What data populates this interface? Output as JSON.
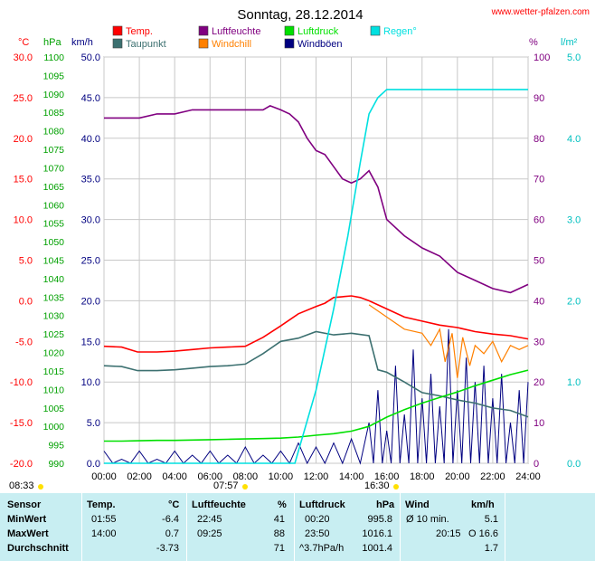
{
  "title": "Sonntag, 28.12.2014",
  "website": "www.wetter-pfalzen.com",
  "colors": {
    "temp": "#ff0000",
    "taupunkt": "#3c7070",
    "luftfeuchte": "#800080",
    "windchill": "#ff8000",
    "luftdruck": "#00e000",
    "windboeen": "#000080",
    "regen": "#00e0e0",
    "axis_temp": "#ff0000",
    "axis_hpa": "#00a000",
    "axis_kmh": "#000080",
    "axis_pct": "#800080",
    "axis_rain": "#00c0c0"
  },
  "legend": [
    {
      "label": "Temp.",
      "color": "#ff0000"
    },
    {
      "label": "Taupunkt",
      "color": "#3c7070"
    },
    {
      "label": "Luftfeuchte",
      "color": "#800080"
    },
    {
      "label": "Windchill",
      "color": "#ff8000"
    },
    {
      "label": "Luftdruck",
      "color": "#00e000"
    },
    {
      "label": "Windböen",
      "color": "#000080"
    },
    {
      "label": "Regen°",
      "color": "#00e0e0"
    }
  ],
  "axis_units": {
    "temp": "°C",
    "hpa": "hPa",
    "kmh": "km/h",
    "pct": "%",
    "rain": "l/m²"
  },
  "sun": {
    "sunrise": "08:33",
    "noon": "07:57",
    "sunset": "16:30"
  },
  "chart_data": {
    "type": "line",
    "x_ticks": [
      "00:00",
      "02:00",
      "04:00",
      "06:00",
      "08:00",
      "10:00",
      "12:00",
      "14:00",
      "16:00",
      "18:00",
      "20:00",
      "22:00",
      "24:00"
    ],
    "xlim": [
      0,
      24
    ],
    "axes": {
      "temp": {
        "range": [
          -20,
          30
        ],
        "ticks": [
          "30.0",
          "25.0",
          "20.0",
          "15.0",
          "10.0",
          "5.0",
          "0.0",
          "-5.0",
          "-10.0",
          "-15.0",
          "-20.0"
        ]
      },
      "hpa": {
        "range": [
          990,
          1100
        ],
        "ticks": [
          "1100",
          "1095",
          "1090",
          "1085",
          "1080",
          "1075",
          "1070",
          "1065",
          "1060",
          "1055",
          "1050",
          "1045",
          "1040",
          "1035",
          "1030",
          "1025",
          "1020",
          "1015",
          "1010",
          "1005",
          "1000",
          "995",
          "990"
        ]
      },
      "kmh": {
        "range": [
          0,
          50
        ],
        "ticks": [
          "50.0",
          "45.0",
          "40.0",
          "35.0",
          "30.0",
          "25.0",
          "20.0",
          "15.0",
          "10.0",
          "5.0",
          "0.0"
        ]
      },
      "pct": {
        "range": [
          0,
          100
        ],
        "ticks": [
          "100",
          "90",
          "80",
          "70",
          "60",
          "50",
          "40",
          "30",
          "20",
          "10",
          "0"
        ]
      },
      "rain": {
        "range": [
          0,
          5
        ],
        "ticks": [
          "5.0",
          "4.0",
          "3.0",
          "2.0",
          "1.0",
          "0.0"
        ]
      }
    },
    "series": [
      {
        "name": "Temp.",
        "axis": "temp",
        "color": "#ff0000",
        "x": [
          0,
          1,
          1.9,
          3,
          4,
          5,
          6,
          7,
          8,
          9,
          10,
          11,
          12,
          12.5,
          13,
          13.5,
          14,
          14.5,
          15,
          16,
          17,
          18,
          19,
          20,
          21,
          22,
          23,
          24
        ],
        "y": [
          -5.6,
          -5.7,
          -6.3,
          -6.3,
          -6.2,
          -6.0,
          -5.8,
          -5.7,
          -5.6,
          -4.5,
          -3.1,
          -1.6,
          -0.7,
          -0.3,
          0.4,
          0.5,
          0.6,
          0.4,
          0.0,
          -1.0,
          -2.0,
          -2.5,
          -3.0,
          -3.3,
          -3.8,
          -4.1,
          -4.3,
          -4.7
        ]
      },
      {
        "name": "Taupunkt",
        "axis": "temp",
        "color": "#3c7070",
        "x": [
          0,
          1,
          1.9,
          3,
          4,
          5,
          6,
          7,
          8,
          9,
          10,
          11,
          12,
          13,
          14,
          15,
          15.5,
          16,
          17,
          18,
          19,
          20,
          21,
          22,
          23,
          24
        ],
        "y": [
          -8.0,
          -8.1,
          -8.6,
          -8.6,
          -8.5,
          -8.3,
          -8.1,
          -8.0,
          -7.8,
          -6.5,
          -5.0,
          -4.6,
          -3.8,
          -4.2,
          -4.0,
          -4.3,
          -8.5,
          -8.8,
          -10.0,
          -11.3,
          -11.7,
          -12.2,
          -12.6,
          -13.2,
          -13.5,
          -14.3
        ]
      },
      {
        "name": "Luftfeuchte",
        "axis": "pct",
        "color": "#800080",
        "x": [
          0,
          1,
          2,
          3,
          4,
          5,
          6,
          7,
          8,
          9,
          9.4,
          10,
          10.5,
          11,
          11.5,
          12,
          12.5,
          13,
          13.5,
          14,
          14.5,
          15,
          15.5,
          16,
          17,
          18,
          19,
          20,
          21,
          22,
          23,
          24
        ],
        "y": [
          85,
          85,
          85,
          86,
          86,
          87,
          87,
          87,
          87,
          87,
          88,
          87,
          86,
          84,
          80,
          77,
          76,
          73,
          70,
          69,
          70,
          72,
          68,
          60,
          56,
          53,
          51,
          47,
          45,
          43,
          42,
          44
        ]
      },
      {
        "name": "Luftdruck",
        "axis": "hpa",
        "color": "#00e000",
        "x": [
          0,
          1,
          2,
          3,
          4,
          5,
          6,
          7,
          8,
          9,
          10,
          11,
          12,
          13,
          14,
          15,
          16,
          17,
          18,
          19,
          20,
          21,
          22,
          23,
          24
        ],
        "y": [
          996.0,
          996.0,
          996.1,
          996.2,
          996.2,
          996.3,
          996.4,
          996.5,
          996.6,
          996.7,
          996.8,
          997.1,
          997.6,
          998.0,
          998.7,
          1000.0,
          1002.5,
          1004.5,
          1006.3,
          1007.8,
          1009.3,
          1011.0,
          1012.5,
          1014.0,
          1015.2
        ]
      },
      {
        "name": "Regen°",
        "axis": "rain",
        "color": "#00e0e0",
        "x": [
          0,
          10.8,
          12,
          13,
          13.8,
          14.5,
          15,
          15.5,
          16,
          17,
          18,
          19,
          20,
          21,
          22,
          23,
          24
        ],
        "y": [
          0,
          0,
          0.9,
          1.9,
          2.8,
          3.7,
          4.3,
          4.5,
          4.6,
          4.6,
          4.6,
          4.6,
          4.6,
          4.6,
          4.6,
          4.6,
          4.6
        ]
      }
    ],
    "windchill": {
      "name": "Windchill",
      "axis": "temp",
      "color": "#ff8000",
      "x": [
        15,
        16,
        17,
        18,
        18.5,
        19,
        19.3,
        19.7,
        20,
        20.3,
        20.7,
        21,
        21.5,
        22,
        22.5,
        23,
        23.5,
        24
      ],
      "y": [
        -0.5,
        -2.0,
        -3.5,
        -4.0,
        -5.5,
        -3.5,
        -7.5,
        -4.0,
        -9.5,
        -4.5,
        -8.0,
        -5.5,
        -6.5,
        -5.0,
        -7.5,
        -5.5,
        -6.0,
        -5.5
      ]
    },
    "windboeen": {
      "name": "Windböen",
      "axis": "kmh",
      "color": "#000080",
      "x": [
        0,
        1,
        2,
        3,
        4,
        5,
        6,
        7,
        8,
        9,
        10,
        11,
        12,
        13,
        14,
        15,
        15.5,
        16,
        16.5,
        17,
        17.5,
        18,
        18.5,
        19,
        19.5,
        20,
        20.5,
        21,
        21.5,
        22,
        22.5,
        23,
        23.5,
        24
      ],
      "y": [
        1.5,
        0.5,
        1.5,
        0.5,
        1.5,
        1.0,
        1.5,
        1.0,
        2.0,
        1.0,
        1.5,
        2.5,
        2.0,
        2.5,
        3.0,
        5.0,
        9.0,
        4.0,
        12.0,
        6.0,
        14.0,
        8.0,
        11.0,
        7.0,
        16.5,
        9.0,
        13.0,
        10.0,
        12.0,
        8.0,
        11.0,
        5.0,
        9.0,
        10.0
      ]
    }
  },
  "stats": {
    "headers": {
      "sensor": "Sensor",
      "temp": "Temp.",
      "temp_unit": "°C",
      "hum": "Luftfeuchte",
      "hum_unit": "%",
      "press": "Luftdruck",
      "press_unit": "hPa",
      "wind": "Wind",
      "wind_unit": "km/h"
    },
    "rows": [
      {
        "label": "MinWert",
        "temp_time": "01:55",
        "temp_val": "-6.4",
        "hum_time": "22:45",
        "hum_val": "41",
        "press_time": "00:20",
        "press_val": "995.8",
        "wind_time": "Ø 10 min.",
        "wind_val": "5.1"
      },
      {
        "label": "MaxWert",
        "temp_time": "14:00",
        "temp_val": "0.7",
        "hum_time": "09:25",
        "hum_val": "88",
        "press_time": "23:50",
        "press_val": "1016.1",
        "wind_time": "20:15",
        "wind_val": "O 16.6"
      },
      {
        "label": "Durchschnitt",
        "temp_time": "",
        "temp_val": "-3.73",
        "hum_time": "",
        "hum_val": "71",
        "press_time": "^3.7hPa/h",
        "press_val": "1001.4",
        "wind_time": "",
        "wind_val": "1.7"
      }
    ]
  }
}
